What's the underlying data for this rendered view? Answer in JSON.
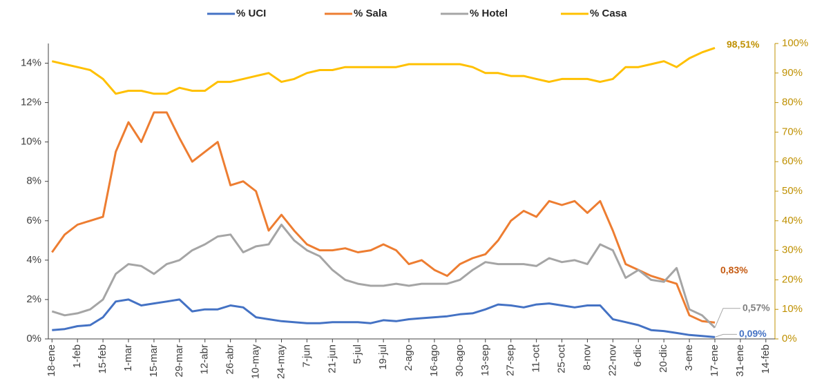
{
  "chart_data": {
    "type": "line",
    "x": [
      0,
      7,
      14,
      21,
      28,
      35,
      42,
      49,
      56,
      63,
      70,
      77,
      84,
      91,
      98,
      105,
      112,
      119,
      126,
      133,
      140,
      147,
      154,
      161,
      168,
      175,
      182,
      189,
      196,
      203,
      210,
      217,
      224,
      231,
      238,
      245,
      252,
      259,
      266,
      273,
      280,
      287,
      294,
      301,
      308,
      315,
      322,
      329,
      336,
      343,
      350,
      357,
      364
    ],
    "xlim": [
      -2,
      397
    ],
    "xticks": [
      {
        "value": 0,
        "label": "18-ene"
      },
      {
        "value": 14,
        "label": "1-feb"
      },
      {
        "value": 28,
        "label": "15-feb"
      },
      {
        "value": 42,
        "label": "1-mar"
      },
      {
        "value": 56,
        "label": "15-mar"
      },
      {
        "value": 70,
        "label": "29-mar"
      },
      {
        "value": 84,
        "label": "12-abr"
      },
      {
        "value": 98,
        "label": "26-abr"
      },
      {
        "value": 112,
        "label": "10-may"
      },
      {
        "value": 126,
        "label": "24-may"
      },
      {
        "value": 140,
        "label": "7-jun"
      },
      {
        "value": 154,
        "label": "21-jun"
      },
      {
        "value": 168,
        "label": "5-jul"
      },
      {
        "value": 182,
        "label": "19-jul"
      },
      {
        "value": 196,
        "label": "2-ago"
      },
      {
        "value": 210,
        "label": "16-ago"
      },
      {
        "value": 224,
        "label": "30-ago"
      },
      {
        "value": 238,
        "label": "13-sep"
      },
      {
        "value": 252,
        "label": "27-sep"
      },
      {
        "value": 266,
        "label": "11-oct"
      },
      {
        "value": 280,
        "label": "25-oct"
      },
      {
        "value": 294,
        "label": "8-nov"
      },
      {
        "value": 308,
        "label": "22-nov"
      },
      {
        "value": 322,
        "label": "6-dic"
      },
      {
        "value": 336,
        "label": "20-dic"
      },
      {
        "value": 350,
        "label": "3-ene"
      },
      {
        "value": 364,
        "label": "17-ene"
      },
      {
        "value": 378,
        "label": "31-ene"
      },
      {
        "value": 392,
        "label": "14-feb"
      }
    ],
    "ylim": [
      0,
      15
    ],
    "yticks": [
      {
        "value": 0,
        "label": "0%"
      },
      {
        "value": 2,
        "label": "2%"
      },
      {
        "value": 4,
        "label": "4%"
      },
      {
        "value": 6,
        "label": "6%"
      },
      {
        "value": 8,
        "label": "8%"
      },
      {
        "value": 10,
        "label": "10%"
      },
      {
        "value": 12,
        "label": "12%"
      },
      {
        "value": 14,
        "label": "14%"
      }
    ],
    "y2lim": [
      0,
      100
    ],
    "y2ticks": [
      {
        "value": 0,
        "label": "0%"
      },
      {
        "value": 10,
        "label": "10%"
      },
      {
        "value": 20,
        "label": "20%"
      },
      {
        "value": 30,
        "label": "30%"
      },
      {
        "value": 40,
        "label": "40%"
      },
      {
        "value": 50,
        "label": "50%"
      },
      {
        "value": 60,
        "label": "60%"
      },
      {
        "value": 70,
        "label": "70%"
      },
      {
        "value": 80,
        "label": "80%"
      },
      {
        "value": 90,
        "label": "90%"
      },
      {
        "value": 100,
        "label": "100%"
      }
    ],
    "legend": "top",
    "series": [
      {
        "name": "% UCI",
        "color": "#4472c4",
        "label_color": "#4472c4",
        "end_label": "0,09%",
        "values": [
          0.45,
          0.5,
          0.65,
          0.7,
          1.1,
          1.9,
          2.0,
          1.7,
          1.8,
          1.9,
          2.0,
          1.4,
          1.5,
          1.5,
          1.7,
          1.6,
          1.1,
          1.0,
          0.9,
          0.85,
          0.8,
          0.8,
          0.85,
          0.85,
          0.85,
          0.8,
          0.95,
          0.9,
          1.0,
          1.05,
          1.1,
          1.15,
          1.25,
          1.3,
          1.5,
          1.75,
          1.7,
          1.6,
          1.75,
          1.8,
          1.7,
          1.6,
          1.7,
          1.7,
          1.0,
          0.85,
          0.7,
          0.45,
          0.4,
          0.3,
          0.2,
          0.15,
          0.09
        ]
      },
      {
        "name": "% Sala",
        "color": "#ed7d31",
        "label_color": "#c55a11",
        "end_label": "0,83%",
        "values": [
          4.4,
          5.3,
          5.8,
          6.0,
          6.2,
          9.5,
          11.0,
          10.0,
          11.5,
          11.5,
          10.2,
          9.0,
          9.5,
          10.0,
          7.8,
          8.0,
          7.5,
          5.5,
          6.3,
          5.5,
          4.8,
          4.5,
          4.5,
          4.6,
          4.4,
          4.5,
          4.8,
          4.5,
          3.8,
          4.0,
          3.5,
          3.2,
          3.8,
          4.1,
          4.3,
          5.0,
          6.0,
          6.5,
          6.2,
          7.0,
          6.8,
          7.0,
          6.4,
          7.0,
          5.5,
          3.8,
          3.5,
          3.2,
          3.0,
          2.8,
          1.2,
          0.9,
          0.83
        ]
      },
      {
        "name": "% Hotel",
        "color": "#a5a5a5",
        "label_color": "#7f7f7f",
        "end_label": "0,57%",
        "values": [
          1.4,
          1.2,
          1.3,
          1.5,
          2.0,
          3.3,
          3.8,
          3.7,
          3.3,
          3.8,
          4.0,
          4.5,
          4.8,
          5.2,
          5.3,
          4.4,
          4.7,
          4.8,
          5.8,
          5.0,
          4.5,
          4.2,
          3.5,
          3.0,
          2.8,
          2.7,
          2.7,
          2.8,
          2.7,
          2.8,
          2.8,
          2.8,
          3.0,
          3.5,
          3.9,
          3.8,
          3.8,
          3.8,
          3.7,
          4.1,
          3.9,
          4.0,
          3.8,
          4.8,
          4.5,
          3.1,
          3.5,
          3.0,
          2.9,
          3.6,
          1.5,
          1.2,
          0.57
        ]
      },
      {
        "name": "% Casa",
        "color": "#ffc000",
        "label_color": "#bf9000",
        "end_label": "98,51%",
        "axis": "y2",
        "values": [
          94,
          93,
          92,
          91,
          88,
          83,
          84,
          84,
          83,
          83,
          85,
          84,
          84,
          87,
          87,
          88,
          89,
          90,
          87,
          88,
          90,
          91,
          91,
          92,
          92,
          92,
          92,
          92,
          93,
          93,
          93,
          93,
          93,
          92,
          90,
          90,
          89,
          89,
          88,
          87,
          88,
          88,
          88,
          87,
          88,
          92,
          92,
          93,
          94,
          92,
          95,
          97,
          98.51
        ]
      }
    ]
  }
}
